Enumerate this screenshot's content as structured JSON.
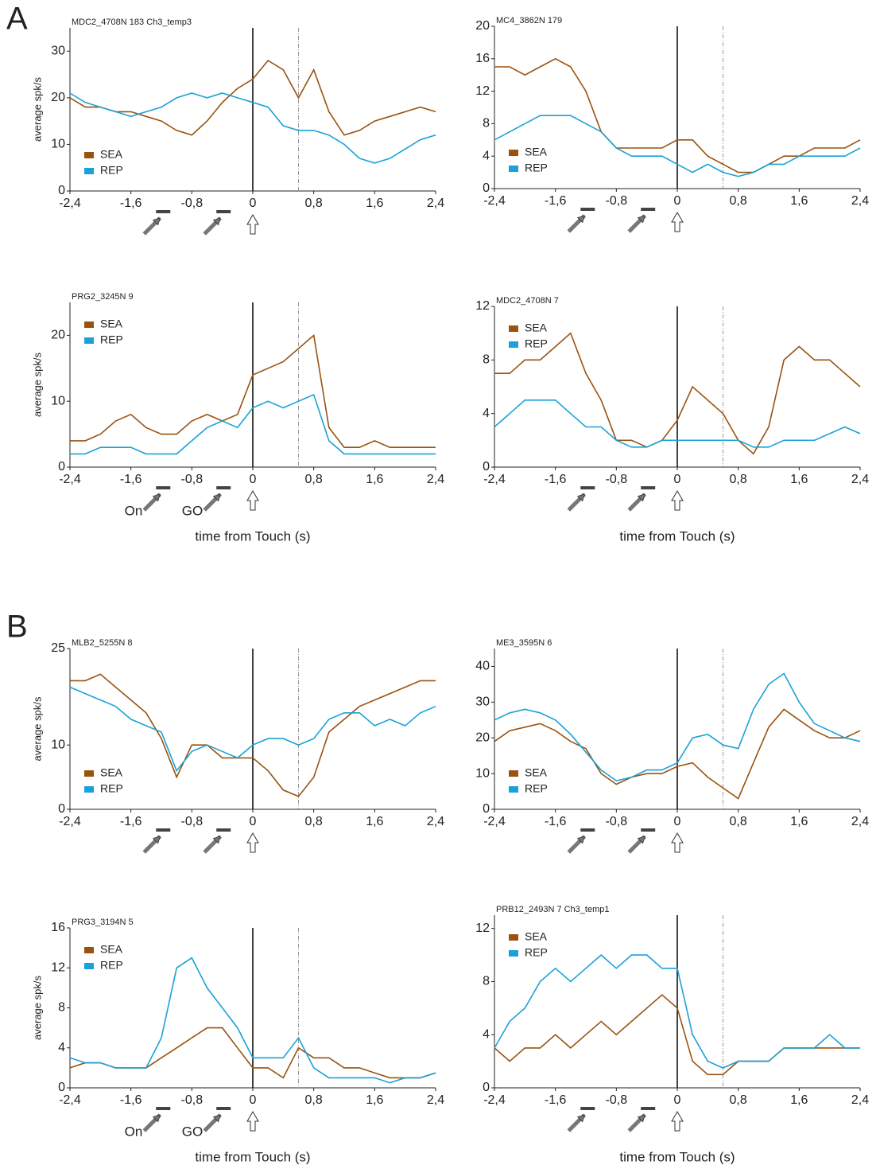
{
  "panel_labels": [
    "A",
    "B"
  ],
  "chart_data": [
    {
      "type": "line",
      "title": "MDC2_4708N 183 Ch3_temp3",
      "ylabel": "average spk/s",
      "legend": "lower left",
      "x": [
        -2.4,
        -2.2,
        -2.0,
        -1.8,
        -1.6,
        -1.4,
        -1.2,
        -1.0,
        -0.8,
        -0.6,
        -0.4,
        -0.2,
        0,
        0.2,
        0.4,
        0.6,
        0.8,
        1.0,
        1.2,
        1.4,
        1.6,
        1.8,
        2.0,
        2.2,
        2.4
      ],
      "series": [
        {
          "name": "SEA",
          "color": "#9a520f",
          "values": [
            20,
            18,
            18,
            17,
            17,
            16,
            15,
            13,
            12,
            15,
            19,
            22,
            24,
            28,
            26,
            20,
            26,
            17,
            12,
            13,
            15,
            16,
            17,
            18,
            17
          ]
        },
        {
          "name": "REP",
          "color": "#1aa2d8",
          "values": [
            21,
            19,
            18,
            17,
            16,
            17,
            18,
            20,
            21,
            20,
            21,
            20,
            19,
            18,
            14,
            13,
            13,
            12,
            10,
            7,
            6,
            7,
            9,
            11,
            12
          ]
        }
      ],
      "xlim": [
        -2.4,
        2.4
      ],
      "xticks": [
        {
          "value": -2.4,
          "label": "-2,4"
        },
        {
          "value": -1.6,
          "label": "-1,6"
        },
        {
          "value": -0.8,
          "label": "-0,8"
        },
        0,
        {
          "value": 0.8,
          "label": "0,8"
        },
        {
          "value": 1.6,
          "label": "1,6"
        },
        {
          "value": 2.4,
          "label": "2,4"
        }
      ],
      "ylim": [
        0,
        35
      ],
      "yticks": [
        0,
        10,
        20,
        30
      ],
      "vlines": [
        0,
        0.6
      ]
    },
    {
      "type": "line",
      "title": "MC4_3862N 179",
      "legend": "lower left",
      "x": [
        -2.4,
        -2.2,
        -2.0,
        -1.8,
        -1.6,
        -1.4,
        -1.2,
        -1.0,
        -0.8,
        -0.6,
        -0.4,
        -0.2,
        0,
        0.2,
        0.4,
        0.6,
        0.8,
        1.0,
        1.2,
        1.4,
        1.6,
        1.8,
        2.0,
        2.2,
        2.4
      ],
      "series": [
        {
          "name": "SEA",
          "color": "#9a520f",
          "values": [
            15,
            15,
            14,
            15,
            16,
            15,
            12,
            7,
            5,
            5,
            5,
            5,
            6,
            6,
            4,
            3,
            2,
            2,
            3,
            4,
            4,
            5,
            5,
            5,
            6
          ]
        },
        {
          "name": "REP",
          "color": "#1aa2d8",
          "values": [
            6,
            7,
            8,
            9,
            9,
            9,
            8,
            7,
            5,
            4,
            4,
            4,
            3,
            2,
            3,
            2,
            1.5,
            2,
            3,
            3,
            4,
            4,
            4,
            4,
            5
          ]
        }
      ],
      "xlim": [
        -2.4,
        2.4
      ],
      "xticks": [
        {
          "value": -2.4,
          "label": "-2,4"
        },
        {
          "value": -1.6,
          "label": "-1,6"
        },
        {
          "value": -0.8,
          "label": "-0,8"
        },
        0,
        {
          "value": 0.8,
          "label": "0,8"
        },
        {
          "value": 1.6,
          "label": "1,6"
        },
        {
          "value": 2.4,
          "label": "2,4"
        }
      ],
      "ylim": [
        0,
        20
      ],
      "yticks": [
        0,
        4,
        8,
        12,
        16,
        20
      ],
      "vlines": [
        0,
        0.6
      ]
    },
    {
      "type": "line",
      "title": "PRG2_3245N 9",
      "ylabel": "average spk/s",
      "xlabel": "time from Touch (s)",
      "annotations": [
        "On",
        "GO"
      ],
      "legend": "upper left",
      "x": [
        -2.4,
        -2.2,
        -2.0,
        -1.8,
        -1.6,
        -1.4,
        -1.2,
        -1.0,
        -0.8,
        -0.6,
        -0.4,
        -0.2,
        0,
        0.2,
        0.4,
        0.6,
        0.8,
        1.0,
        1.2,
        1.4,
        1.6,
        1.8,
        2.0,
        2.2,
        2.4
      ],
      "series": [
        {
          "name": "SEA",
          "color": "#9a520f",
          "values": [
            4,
            4,
            5,
            7,
            8,
            6,
            5,
            5,
            7,
            8,
            7,
            8,
            14,
            15,
            16,
            18,
            20,
            6,
            3,
            3,
            4,
            3,
            3,
            3,
            3
          ]
        },
        {
          "name": "REP",
          "color": "#1aa2d8",
          "values": [
            2,
            2,
            3,
            3,
            3,
            2,
            2,
            2,
            4,
            6,
            7,
            6,
            9,
            10,
            9,
            10,
            11,
            4,
            2,
            2,
            2,
            2,
            2,
            2,
            2
          ]
        }
      ],
      "xlim": [
        -2.4,
        2.4
      ],
      "xticks": [
        {
          "value": -2.4,
          "label": "-2,4"
        },
        {
          "value": -1.6,
          "label": "-1,6"
        },
        {
          "value": -0.8,
          "label": "-0,8"
        },
        0,
        {
          "value": 0.8,
          "label": "0,8"
        },
        {
          "value": 1.6,
          "label": "1,6"
        },
        {
          "value": 2.4,
          "label": "2,4"
        }
      ],
      "ylim": [
        0,
        25
      ],
      "yticks": [
        0,
        10,
        20
      ],
      "vlines": [
        0,
        0.6
      ]
    },
    {
      "type": "line",
      "title": "MDC2_4708N 7",
      "xlabel": "time from Touch (s)",
      "legend": "upper left",
      "x": [
        -2.4,
        -2.2,
        -2.0,
        -1.8,
        -1.6,
        -1.4,
        -1.2,
        -1.0,
        -0.8,
        -0.6,
        -0.4,
        -0.2,
        0,
        0.2,
        0.4,
        0.6,
        0.8,
        1.0,
        1.2,
        1.4,
        1.6,
        1.8,
        2.0,
        2.2,
        2.4
      ],
      "series": [
        {
          "name": "SEA",
          "color": "#9a520f",
          "values": [
            7,
            7,
            8,
            8,
            9,
            10,
            7,
            5,
            2,
            2,
            1.5,
            2,
            3.5,
            6,
            5,
            4,
            2,
            1,
            3,
            8,
            9,
            8,
            8,
            7,
            6
          ]
        },
        {
          "name": "REP",
          "color": "#1aa2d8",
          "values": [
            3,
            4,
            5,
            5,
            5,
            4,
            3,
            3,
            2,
            1.5,
            1.5,
            2,
            2,
            2,
            2,
            2,
            2,
            1.5,
            1.5,
            2,
            2,
            2,
            2.5,
            3,
            2.5
          ]
        }
      ],
      "xlim": [
        -2.4,
        2.4
      ],
      "xticks": [
        {
          "value": -2.4,
          "label": "-2,4"
        },
        {
          "value": -1.6,
          "label": "-1,6"
        },
        {
          "value": -0.8,
          "label": "-0,8"
        },
        0,
        {
          "value": 0.8,
          "label": "0,8"
        },
        {
          "value": 1.6,
          "label": "1,6"
        },
        {
          "value": 2.4,
          "label": "2,4"
        }
      ],
      "ylim": [
        0,
        12
      ],
      "yticks": [
        0,
        4,
        8,
        12
      ],
      "vlines": [
        0,
        0.6
      ]
    },
    {
      "type": "line",
      "title": "MLB2_5255N 8",
      "ylabel": "average spk/s",
      "legend": "lower left",
      "x": [
        -2.4,
        -2.2,
        -2.0,
        -1.8,
        -1.6,
        -1.4,
        -1.2,
        -1.0,
        -0.8,
        -0.6,
        -0.4,
        -0.2,
        0,
        0.2,
        0.4,
        0.6,
        0.8,
        1.0,
        1.2,
        1.4,
        1.6,
        1.8,
        2.0,
        2.2,
        2.4
      ],
      "series": [
        {
          "name": "SEA",
          "color": "#9a520f",
          "values": [
            20,
            20,
            21,
            19,
            17,
            15,
            11,
            5,
            10,
            10,
            8,
            8,
            8,
            6,
            3,
            2,
            5,
            12,
            14,
            16,
            17,
            18,
            19,
            20,
            20
          ]
        },
        {
          "name": "REP",
          "color": "#1aa2d8",
          "values": [
            19,
            18,
            17,
            16,
            14,
            13,
            12,
            6,
            9,
            10,
            9,
            8,
            10,
            11,
            11,
            10,
            11,
            14,
            15,
            15,
            13,
            14,
            13,
            15,
            16
          ]
        }
      ],
      "xlim": [
        -2.4,
        2.4
      ],
      "xticks": [
        {
          "value": -2.4,
          "label": "-2,4"
        },
        {
          "value": -1.6,
          "label": "-1,6"
        },
        {
          "value": -0.8,
          "label": "-0,8"
        },
        0,
        {
          "value": 0.8,
          "label": "0,8"
        },
        {
          "value": 1.6,
          "label": "1,6"
        },
        {
          "value": 2.4,
          "label": "2,4"
        }
      ],
      "ylim": [
        0,
        25
      ],
      "yticks": [
        0,
        10,
        25
      ],
      "vlines": [
        0,
        0.6
      ]
    },
    {
      "type": "line",
      "title": "ME3_3595N 6",
      "legend": "lower left",
      "x": [
        -2.4,
        -2.2,
        -2.0,
        -1.8,
        -1.6,
        -1.4,
        -1.2,
        -1.0,
        -0.8,
        -0.6,
        -0.4,
        -0.2,
        0,
        0.2,
        0.4,
        0.6,
        0.8,
        1.0,
        1.2,
        1.4,
        1.6,
        1.8,
        2.0,
        2.2,
        2.4
      ],
      "series": [
        {
          "name": "SEA",
          "color": "#9a520f",
          "values": [
            19,
            22,
            23,
            24,
            22,
            19,
            17,
            10,
            7,
            9,
            10,
            10,
            12,
            13,
            9,
            6,
            3,
            13,
            23,
            28,
            25,
            22,
            20,
            20,
            22
          ]
        },
        {
          "name": "REP",
          "color": "#1aa2d8",
          "values": [
            25,
            27,
            28,
            27,
            25,
            21,
            16,
            11,
            8,
            9,
            11,
            11,
            13,
            20,
            21,
            18,
            17,
            28,
            35,
            38,
            30,
            24,
            22,
            20,
            19
          ]
        }
      ],
      "xlim": [
        -2.4,
        2.4
      ],
      "xticks": [
        {
          "value": -2.4,
          "label": "-2,4"
        },
        {
          "value": -1.6,
          "label": "-1,6"
        },
        {
          "value": -0.8,
          "label": "-0,8"
        },
        0,
        {
          "value": 0.8,
          "label": "0,8"
        },
        {
          "value": 1.6,
          "label": "1,6"
        },
        {
          "value": 2.4,
          "label": "2,4"
        }
      ],
      "ylim": [
        0,
        45
      ],
      "yticks": [
        0,
        10,
        20,
        30,
        40
      ],
      "vlines": [
        0,
        0.6
      ]
    },
    {
      "type": "line",
      "title": "PRG3_3194N  5",
      "ylabel": "average spk/s",
      "xlabel": "time from Touch (s)",
      "annotations": [
        "On",
        "GO"
      ],
      "legend": "upper left",
      "x": [
        -2.4,
        -2.2,
        -2.0,
        -1.8,
        -1.6,
        -1.4,
        -1.2,
        -1.0,
        -0.8,
        -0.6,
        -0.4,
        -0.2,
        0,
        0.2,
        0.4,
        0.6,
        0.8,
        1.0,
        1.2,
        1.4,
        1.6,
        1.8,
        2.0,
        2.2,
        2.4
      ],
      "series": [
        {
          "name": "SEA",
          "color": "#9a520f",
          "values": [
            2,
            2.5,
            2.5,
            2,
            2,
            2,
            3,
            4,
            5,
            6,
            6,
            4,
            2,
            2,
            1,
            4,
            3,
            3,
            2,
            2,
            1.5,
            1,
            1,
            1,
            1.5
          ]
        },
        {
          "name": "REP",
          "color": "#1aa2d8",
          "values": [
            3,
            2.5,
            2.5,
            2,
            2,
            2,
            5,
            12,
            13,
            10,
            8,
            6,
            3,
            3,
            3,
            5,
            2,
            1,
            1,
            1,
            1,
            0.5,
            1,
            1,
            1.5
          ]
        }
      ],
      "xlim": [
        -2.4,
        2.4
      ],
      "xticks": [
        {
          "value": -2.4,
          "label": "-2,4"
        },
        {
          "value": -1.6,
          "label": "-1,6"
        },
        {
          "value": -0.8,
          "label": "-0,8"
        },
        0,
        {
          "value": 0.8,
          "label": "0,8"
        },
        {
          "value": 1.6,
          "label": "1,6"
        },
        {
          "value": 2.4,
          "label": "2,4"
        }
      ],
      "ylim": [
        0,
        16
      ],
      "yticks": [
        0,
        4,
        8,
        12,
        16
      ],
      "vlines": [
        0,
        0.6
      ]
    },
    {
      "type": "line",
      "title": "PRB12_2493N 7 Ch3_temp1",
      "xlabel": "time from Touch (s)",
      "legend": "upper left",
      "x": [
        -2.4,
        -2.2,
        -2.0,
        -1.8,
        -1.6,
        -1.4,
        -1.2,
        -1.0,
        -0.8,
        -0.6,
        -0.4,
        -0.2,
        0,
        0.2,
        0.4,
        0.6,
        0.8,
        1.0,
        1.2,
        1.4,
        1.6,
        1.8,
        2.0,
        2.2,
        2.4
      ],
      "series": [
        {
          "name": "SEA",
          "color": "#9a520f",
          "values": [
            3,
            2,
            3,
            3,
            4,
            3,
            4,
            5,
            4,
            5,
            6,
            7,
            6,
            2,
            1,
            1,
            2,
            2,
            2,
            3,
            3,
            3,
            3,
            3,
            3
          ]
        },
        {
          "name": "REP",
          "color": "#1aa2d8",
          "values": [
            3,
            5,
            6,
            8,
            9,
            8,
            9,
            10,
            9,
            10,
            10,
            9,
            9,
            4,
            2,
            1.5,
            2,
            2,
            2,
            3,
            3,
            3,
            4,
            3,
            3
          ]
        }
      ],
      "xlim": [
        -2.4,
        2.4
      ],
      "xticks": [
        {
          "value": -2.4,
          "label": "-2,4"
        },
        {
          "value": -1.6,
          "label": "-1,6"
        },
        {
          "value": -0.8,
          "label": "-0,8"
        },
        0,
        {
          "value": 0.8,
          "label": "0,8"
        },
        {
          "value": 1.6,
          "label": "1,6"
        },
        {
          "value": 2.4,
          "label": "2,4"
        }
      ],
      "ylim": [
        0,
        13
      ],
      "yticks": [
        0,
        4,
        8,
        12
      ],
      "vlines": [
        0,
        0.6
      ]
    }
  ]
}
